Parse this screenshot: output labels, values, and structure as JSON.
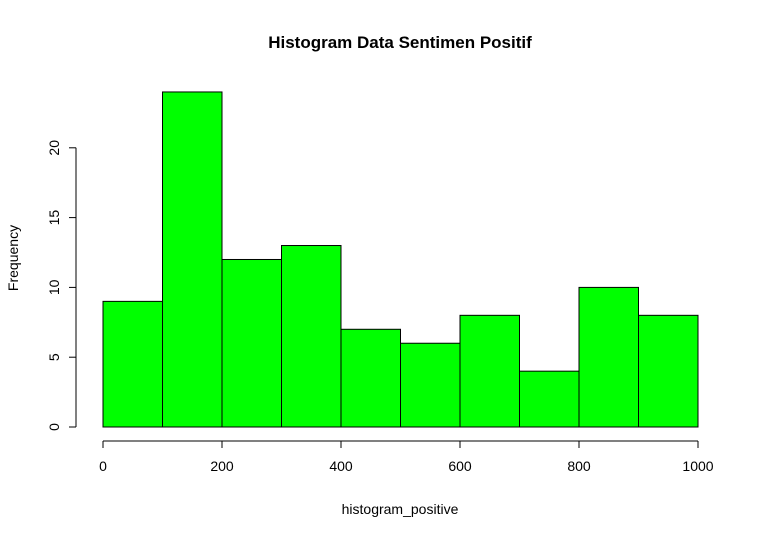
{
  "chart_data": {
    "type": "bar",
    "title": "Histogram Data Sentimen Positif",
    "xlabel": "histogram_positive",
    "ylabel": "Frequency",
    "bin_edges": [
      0,
      100,
      200,
      300,
      400,
      500,
      600,
      700,
      800,
      900,
      1000
    ],
    "values": [
      9,
      24,
      12,
      13,
      7,
      6,
      8,
      4,
      10,
      8
    ],
    "xlim": [
      0,
      1000
    ],
    "ylim": [
      0,
      24
    ],
    "x_ticks": [
      0,
      200,
      400,
      600,
      800,
      1000
    ],
    "y_ticks": [
      0,
      5,
      10,
      15,
      20
    ],
    "bar_color": "#00ff00",
    "border_color": "#000000",
    "grid": false,
    "legend": "none"
  }
}
